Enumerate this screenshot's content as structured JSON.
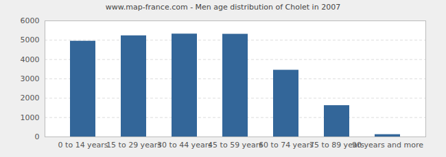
{
  "chart_data": {
    "type": "bar",
    "title": "www.map-france.com - Men age distribution of Cholet in 2007",
    "categories": [
      "0 to 14 years",
      "15 to 29 years",
      "30 to 44 years",
      "45 to 59 years",
      "60 to 74 years",
      "75 to 89 years",
      "90 years and more"
    ],
    "values": [
      4950,
      5230,
      5320,
      5310,
      3450,
      1620,
      120
    ],
    "color": "#336699",
    "ylim": [
      0,
      6000
    ],
    "yticks": [
      0,
      1000,
      2000,
      3000,
      4000,
      5000,
      6000
    ],
    "grid": true
  }
}
